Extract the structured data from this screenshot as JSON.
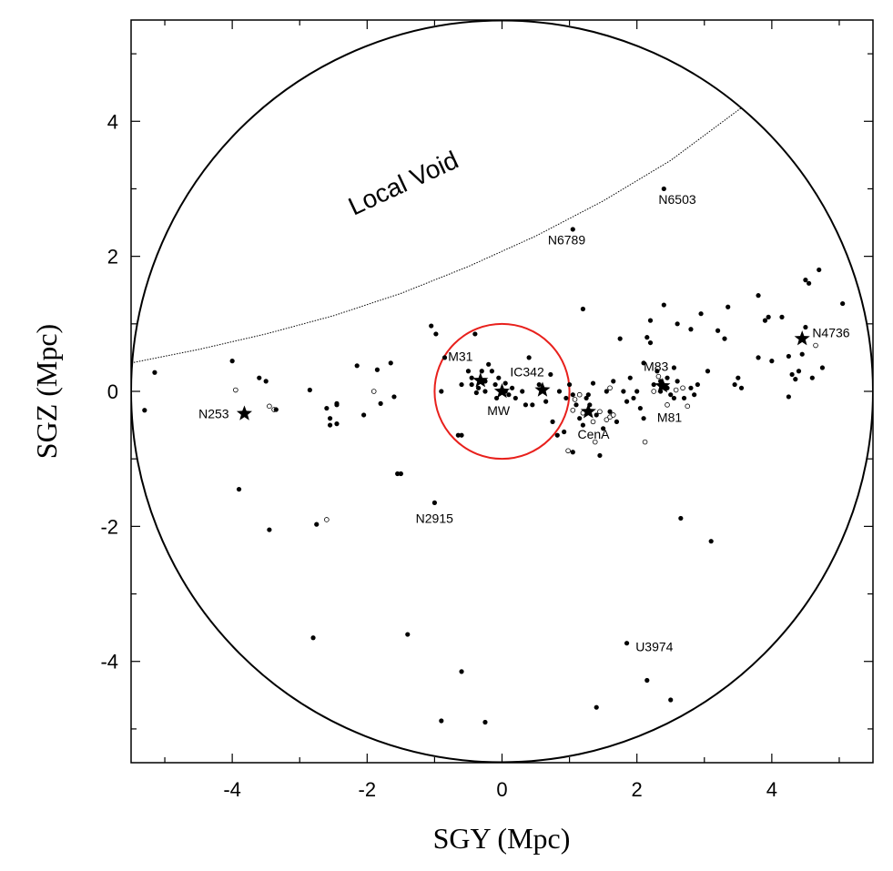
{
  "chart_data": {
    "type": "scatter",
    "title": "",
    "xlabel": "SGY (Mpc)",
    "ylabel": "SGZ (Mpc)",
    "xlim": [
      -5.5,
      5.5
    ],
    "ylim": [
      -5.5,
      5.5
    ],
    "x_ticks": [
      -4,
      -2,
      0,
      2,
      4
    ],
    "y_ticks": [
      -4,
      -2,
      0,
      2,
      4
    ],
    "x_tick_labels": [
      "-4",
      "-2",
      "0",
      "2",
      "4"
    ],
    "y_tick_labels": [
      "-4",
      "-2",
      "0",
      "2",
      "4"
    ],
    "grid": false,
    "boundary_circle_radius": 5.5,
    "inner_circle": {
      "radius": 1.0,
      "color": "#e8201c"
    },
    "local_void_boundary": [
      [
        -5.5,
        0.42
      ],
      [
        -4.5,
        0.62
      ],
      [
        -3.5,
        0.85
      ],
      [
        -2.5,
        1.12
      ],
      [
        -1.5,
        1.45
      ],
      [
        -0.5,
        1.85
      ],
      [
        0.5,
        2.3
      ],
      [
        1.5,
        2.82
      ],
      [
        2.5,
        3.42
      ],
      [
        3.55,
        4.2
      ]
    ],
    "annotations": [
      {
        "text": "Local Void",
        "x": -2.2,
        "y": 2.6,
        "rotation": -25
      },
      {
        "text": "N6503",
        "x": 2.32,
        "y": 2.78
      },
      {
        "text": "N6789",
        "x": 0.68,
        "y": 2.18
      },
      {
        "text": "M31",
        "x": -0.8,
        "y": 0.45
      },
      {
        "text": "IC342",
        "x": 0.12,
        "y": 0.22
      },
      {
        "text": "MW",
        "x": -0.22,
        "y": -0.35
      },
      {
        "text": "N253",
        "x": -4.5,
        "y": -0.4
      },
      {
        "text": "M83",
        "x": 2.1,
        "y": 0.3
      },
      {
        "text": "M81",
        "x": 2.3,
        "y": -0.45
      },
      {
        "text": "CenA",
        "x": 1.12,
        "y": -0.7
      },
      {
        "text": "N4736",
        "x": 4.6,
        "y": 0.8
      },
      {
        "text": "N2915",
        "x": -1.28,
        "y": -1.95
      },
      {
        "text": "U3974",
        "x": 1.98,
        "y": -3.85
      }
    ],
    "series": [
      {
        "marker": "star",
        "points": [
          [
            -3.82,
            -0.33
          ],
          [
            -0.32,
            0.16
          ],
          [
            0.0,
            0.0
          ],
          [
            0.6,
            0.02
          ],
          [
            1.28,
            -0.3
          ],
          [
            2.38,
            0.08
          ],
          [
            4.45,
            0.78
          ]
        ]
      },
      {
        "marker": "filled-circle",
        "points": [
          [
            2.4,
            3.0
          ],
          [
            1.05,
            2.4
          ],
          [
            -5.15,
            0.28
          ],
          [
            -5.3,
            -0.28
          ],
          [
            -4.0,
            0.45
          ],
          [
            -3.9,
            -1.45
          ],
          [
            -3.6,
            0.2
          ],
          [
            -3.5,
            0.15
          ],
          [
            -3.45,
            -2.05
          ],
          [
            -3.35,
            -0.27
          ],
          [
            -2.85,
            0.02
          ],
          [
            -2.75,
            -1.97
          ],
          [
            -2.8,
            -3.65
          ],
          [
            -2.6,
            -0.25
          ],
          [
            -2.55,
            -0.4
          ],
          [
            -2.55,
            -0.5
          ],
          [
            -2.45,
            -0.2
          ],
          [
            -2.45,
            -0.48
          ],
          [
            -2.15,
            0.38
          ],
          [
            -2.05,
            -0.35
          ],
          [
            -1.85,
            0.32
          ],
          [
            -1.8,
            -0.18
          ],
          [
            -1.65,
            0.42
          ],
          [
            -1.6,
            -0.08
          ],
          [
            -1.5,
            -1.22
          ],
          [
            -1.4,
            -3.6
          ],
          [
            -1.05,
            0.97
          ],
          [
            -0.98,
            0.85
          ],
          [
            -1.0,
            -1.65
          ],
          [
            -0.9,
            0.0
          ],
          [
            -0.9,
            -4.88
          ],
          [
            -0.85,
            0.5
          ],
          [
            -0.6,
            0.1
          ],
          [
            -0.6,
            -4.15
          ],
          [
            -0.6,
            -0.65
          ],
          [
            -0.5,
            0.3
          ],
          [
            -0.45,
            0.2
          ],
          [
            -0.45,
            0.1
          ],
          [
            -0.4,
            0.85
          ],
          [
            -0.38,
            -0.02
          ],
          [
            -0.35,
            0.05
          ],
          [
            -0.3,
            0.3
          ],
          [
            -0.25,
            0.0
          ],
          [
            -0.2,
            0.4
          ],
          [
            -0.15,
            0.3
          ],
          [
            -0.1,
            0.1
          ],
          [
            -0.08,
            -0.1
          ],
          [
            -0.05,
            0.2
          ],
          [
            0.05,
            0.0
          ],
          [
            0.1,
            -0.05
          ],
          [
            0.15,
            0.05
          ],
          [
            0.2,
            -0.1
          ],
          [
            -0.25,
            -4.9
          ],
          [
            0.3,
            0.0
          ],
          [
            0.35,
            -0.2
          ],
          [
            0.4,
            0.5
          ],
          [
            0.45,
            -0.2
          ],
          [
            0.55,
            0.1
          ],
          [
            0.65,
            -0.15
          ],
          [
            0.72,
            0.25
          ],
          [
            0.75,
            -0.45
          ],
          [
            0.82,
            -0.65
          ],
          [
            0.85,
            0.0
          ],
          [
            0.95,
            -0.1
          ],
          [
            1.0,
            0.1
          ],
          [
            1.05,
            -0.05
          ],
          [
            1.05,
            -0.9
          ],
          [
            1.1,
            -0.2
          ],
          [
            1.15,
            -0.4
          ],
          [
            1.2,
            1.22
          ],
          [
            1.2,
            -0.5
          ],
          [
            1.25,
            -0.1
          ],
          [
            1.3,
            -0.2
          ],
          [
            1.35,
            0.12
          ],
          [
            1.4,
            -0.35
          ],
          [
            1.45,
            -0.95
          ],
          [
            1.4,
            -4.68
          ],
          [
            1.5,
            -0.55
          ],
          [
            1.55,
            0.0
          ],
          [
            1.6,
            -0.3
          ],
          [
            1.65,
            0.15
          ],
          [
            1.7,
            -0.45
          ],
          [
            1.75,
            0.78
          ],
          [
            1.8,
            0.0
          ],
          [
            1.85,
            -0.15
          ],
          [
            1.9,
            0.2
          ],
          [
            1.95,
            -0.1
          ],
          [
            2.0,
            0.0
          ],
          [
            2.05,
            -0.25
          ],
          [
            2.1,
            0.42
          ],
          [
            2.1,
            -0.4
          ],
          [
            2.15,
            0.8
          ],
          [
            2.2,
            0.72
          ],
          [
            2.2,
            1.05
          ],
          [
            2.25,
            0.1
          ],
          [
            2.3,
            0.3
          ],
          [
            2.35,
            0.0
          ],
          [
            2.4,
            1.28
          ],
          [
            2.45,
            0.2
          ],
          [
            2.5,
            -0.05
          ],
          [
            2.55,
            0.35
          ],
          [
            2.6,
            0.15
          ],
          [
            2.6,
            1.0
          ],
          [
            2.65,
            -1.88
          ],
          [
            2.7,
            -0.1
          ],
          [
            2.8,
            0.05
          ],
          [
            2.8,
            0.92
          ],
          [
            2.85,
            -0.05
          ],
          [
            2.9,
            0.1
          ],
          [
            2.95,
            1.15
          ],
          [
            3.05,
            0.3
          ],
          [
            3.1,
            -2.22
          ],
          [
            3.2,
            0.9
          ],
          [
            3.3,
            0.78
          ],
          [
            3.35,
            1.25
          ],
          [
            3.45,
            0.1
          ],
          [
            3.5,
            0.2
          ],
          [
            3.55,
            0.05
          ],
          [
            3.8,
            0.5
          ],
          [
            3.8,
            1.42
          ],
          [
            3.9,
            1.05
          ],
          [
            3.95,
            1.1
          ],
          [
            4.0,
            0.45
          ],
          [
            4.15,
            1.1
          ],
          [
            4.25,
            -0.08
          ],
          [
            4.25,
            0.52
          ],
          [
            4.3,
            0.25
          ],
          [
            4.35,
            0.18
          ],
          [
            4.4,
            0.3
          ],
          [
            4.45,
            0.55
          ],
          [
            4.5,
            0.95
          ],
          [
            4.5,
            1.65
          ],
          [
            4.55,
            1.6
          ],
          [
            4.6,
            0.2
          ],
          [
            4.7,
            1.8
          ],
          [
            4.75,
            0.35
          ],
          [
            5.05,
            1.3
          ],
          [
            1.85,
            -3.73
          ],
          [
            2.15,
            -4.28
          ],
          [
            2.5,
            -4.57
          ],
          [
            -2.45,
            -0.18
          ],
          [
            -1.55,
            -1.22
          ],
          [
            -0.65,
            -0.65
          ],
          [
            0.05,
            0.12
          ],
          [
            -0.25,
            0.15
          ],
          [
            2.45,
            0.05
          ],
          [
            2.35,
            0.15
          ],
          [
            2.55,
            -0.1
          ],
          [
            1.28,
            -0.05
          ],
          [
            0.92,
            -0.6
          ]
        ]
      },
      {
        "marker": "open-circle",
        "points": [
          [
            -3.95,
            0.02
          ],
          [
            -3.45,
            -0.22
          ],
          [
            -3.38,
            -0.27
          ],
          [
            -1.9,
            0.0
          ],
          [
            -2.6,
            -1.9
          ],
          [
            0.98,
            -0.88
          ],
          [
            1.05,
            -0.28
          ],
          [
            1.15,
            -0.05
          ],
          [
            1.2,
            -0.32
          ],
          [
            1.35,
            -0.45
          ],
          [
            1.38,
            -0.75
          ],
          [
            1.45,
            -0.3
          ],
          [
            1.55,
            -0.42
          ],
          [
            1.6,
            -0.38
          ],
          [
            1.6,
            0.05
          ],
          [
            1.65,
            -0.35
          ],
          [
            2.12,
            -0.75
          ],
          [
            2.25,
            0.0
          ],
          [
            2.32,
            0.22
          ],
          [
            2.45,
            -0.2
          ],
          [
            2.58,
            0.02
          ],
          [
            2.68,
            0.05
          ],
          [
            2.75,
            -0.22
          ],
          [
            4.65,
            0.68
          ],
          [
            1.08,
            -0.12
          ]
        ]
      }
    ]
  }
}
